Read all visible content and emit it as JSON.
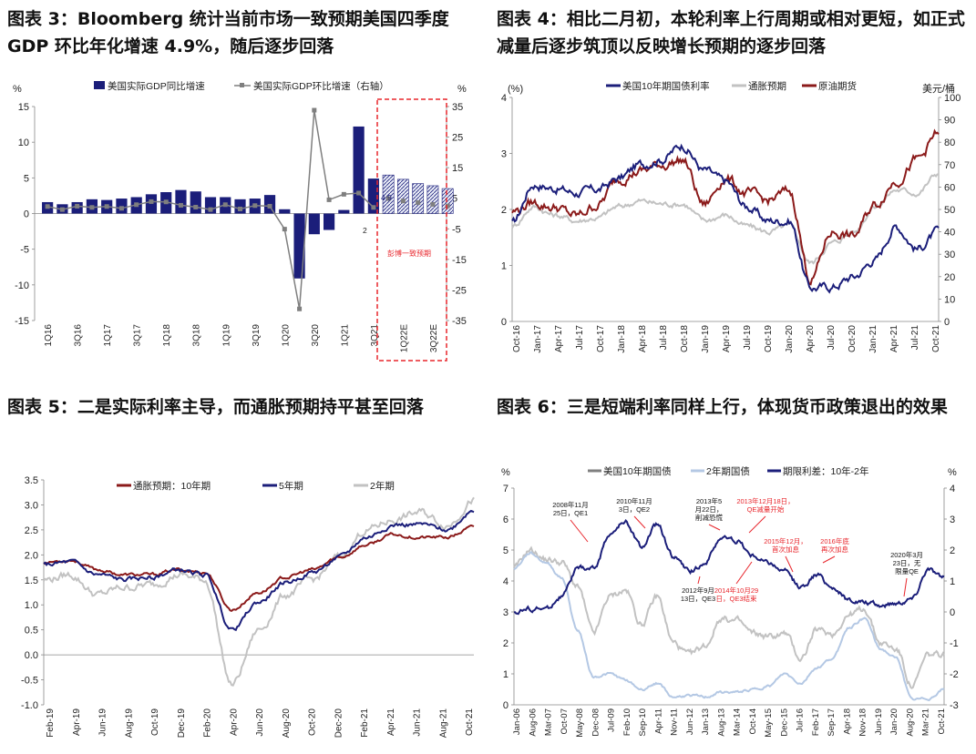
{
  "figures": [
    {
      "title": "图表 3：Bloomberg 统计当前市场一致预期美国四季度 GDP 环比年化增速 4.9%，随后逐步回落"
    },
    {
      "title": "图表 4：相比二月初，本轮利率上行周期或相对更短，如正式减量后逐步筑顶以反映增长预期的逐步回落"
    },
    {
      "title": "图表 5：二是实际利率主导，而通胀预期持平甚至回落"
    },
    {
      "title": "图表 6：三是短端利率同样上行，体现货币政策退出的效果"
    }
  ],
  "colors": {
    "navy": "#1b1e7a",
    "gray": "#7f7f7f",
    "lightgray": "#c2c2c2",
    "darkred": "#8b1a1a",
    "lightblue": "#b4c8e4",
    "red": "#e8262c"
  },
  "chart_data": [
    {
      "type": "bar",
      "title": "",
      "units_left": "%",
      "units_right": "%",
      "legend": [
        "美国实际GDP同比增速",
        "美国实际GDP环比增速（右轴）"
      ],
      "ylim": [
        -15,
        15
      ],
      "y2lim": [
        -35,
        35
      ],
      "yticks": [
        "15",
        "10",
        "5",
        "0",
        "-5",
        "-10",
        "-15"
      ],
      "y2ticks": [
        "35",
        "25",
        "15",
        "5",
        "-5",
        "-15",
        "-25",
        "-35"
      ],
      "xticklabels": [
        "1Q16",
        "3Q16",
        "1Q17",
        "3Q17",
        "1Q18",
        "3Q18",
        "1Q19",
        "3Q19",
        "1Q20",
        "3Q20",
        "1Q21",
        "3Q21",
        "1Q22E",
        "3Q22E"
      ],
      "categories": [
        "1Q16",
        "2Q16",
        "3Q16",
        "4Q16",
        "1Q17",
        "2Q17",
        "3Q17",
        "4Q17",
        "1Q18",
        "2Q18",
        "3Q18",
        "4Q18",
        "1Q19",
        "2Q19",
        "3Q19",
        "4Q19",
        "1Q20",
        "2Q20",
        "3Q20",
        "4Q20",
        "1Q21",
        "2Q21",
        "3Q21",
        "4Q21E",
        "1Q22E",
        "2Q22E",
        "3Q22E",
        "4Q22E"
      ],
      "series": [
        {
          "name": "美国实际GDP同比增速",
          "values": [
            1.6,
            1.3,
            1.6,
            2.0,
            1.9,
            2.1,
            2.3,
            2.7,
            3.0,
            3.3,
            3.1,
            2.3,
            2.3,
            2.0,
            2.1,
            2.6,
            0.6,
            -9.1,
            -2.9,
            -2.3,
            0.5,
            12.2,
            4.9,
            5.4,
            4.8,
            4.2,
            3.9,
            3.5
          ]
        },
        {
          "name": "美国实际GDP环比增速（右轴）",
          "values": [
            2.3,
            1.3,
            2.4,
            2.0,
            2.3,
            1.7,
            2.9,
            3.9,
            3.8,
            2.7,
            2.1,
            1.3,
            2.9,
            1.5,
            2.6,
            2.4,
            -5.1,
            -31.2,
            33.8,
            4.5,
            6.3,
            6.7,
            2.0,
            4.9,
            4.1,
            3.6,
            3.0,
            2.5
          ]
        }
      ],
      "annotations": [
        "4.9",
        "2",
        "彭博一致预期"
      ]
    },
    {
      "type": "line",
      "title": "",
      "units_left": "(%)",
      "units_right": "美元/桶",
      "legend": [
        "美国10年期国债利率",
        "通胀预期",
        "原油期货"
      ],
      "ylim": [
        0,
        4
      ],
      "y2lim": [
        0,
        100
      ],
      "yticks": [
        "4",
        "3",
        "2",
        "1",
        "0"
      ],
      "y2ticks": [
        "100",
        "90",
        "80",
        "70",
        "60",
        "50",
        "40",
        "30",
        "20",
        "10",
        "0"
      ],
      "xticklabels": [
        "Oct-16",
        "Jan-17",
        "Apr-17",
        "Jul-17",
        "Oct-17",
        "Jan-18",
        "Apr-18",
        "Jul-18",
        "Oct-18",
        "Jan-19",
        "Apr-19",
        "Jul-19",
        "Oct-19",
        "Jan-20",
        "Apr-20",
        "Jul-20",
        "Oct-20",
        "Jan-21",
        "Apr-21",
        "Jul-21",
        "Oct-21"
      ],
      "series": [
        {
          "name": "美国10年期国债利率",
          "values": [
            1.75,
            2.45,
            2.38,
            2.3,
            2.35,
            2.55,
            2.8,
            2.9,
            3.15,
            2.7,
            2.5,
            2.05,
            1.8,
            1.8,
            0.6,
            0.62,
            0.8,
            1.1,
            1.7,
            1.3,
            1.6
          ]
        },
        {
          "name": "通胀预期",
          "values": [
            1.7,
            2.05,
            1.9,
            1.8,
            1.85,
            2.05,
            2.15,
            2.1,
            2.1,
            1.8,
            1.9,
            1.7,
            1.6,
            1.7,
            1.05,
            1.4,
            1.6,
            2.05,
            2.35,
            2.3,
            2.65
          ]
        },
        {
          "name": "原油期货",
          "values": [
            49,
            53,
            51,
            47,
            52,
            64,
            67,
            70,
            72,
            52,
            64,
            57,
            54,
            58,
            19,
            40,
            38,
            52,
            63,
            72,
            84
          ]
        }
      ]
    },
    {
      "type": "line",
      "title": "",
      "legend": [
        "通胀预期：10年期",
        "5年期",
        "2年期"
      ],
      "ylim": [
        -1.0,
        3.5
      ],
      "yticks": [
        "3.5",
        "3.0",
        "2.5",
        "2.0",
        "1.5",
        "1.0",
        "0.5",
        "0.0",
        "-0.5",
        "-1.0"
      ],
      "xticklabels": [
        "Feb-19",
        "Apr-19",
        "Jun-19",
        "Aug-19",
        "Oct-19",
        "Dec-19",
        "Feb-20",
        "Apr-20",
        "Jun-20",
        "Aug-20",
        "Oct-20",
        "Dec-20",
        "Feb-21",
        "Apr-21",
        "Jun-21",
        "Aug-21",
        "Oct-21"
      ],
      "series": [
        {
          "name": "通胀预期：10年期",
          "values": [
            1.85,
            1.9,
            1.7,
            1.6,
            1.6,
            1.7,
            1.65,
            0.9,
            1.25,
            1.55,
            1.7,
            1.95,
            2.2,
            2.4,
            2.35,
            2.35,
            2.55
          ]
        },
        {
          "name": "5年期",
          "values": [
            1.8,
            1.85,
            1.6,
            1.5,
            1.55,
            1.7,
            1.6,
            0.5,
            1.05,
            1.45,
            1.65,
            1.95,
            2.35,
            2.6,
            2.6,
            2.5,
            2.9
          ]
        },
        {
          "name": "2年期",
          "values": [
            1.5,
            1.6,
            1.2,
            1.35,
            1.4,
            1.6,
            1.5,
            -0.6,
            0.5,
            1.2,
            1.5,
            1.95,
            2.5,
            2.7,
            2.85,
            2.6,
            3.1
          ]
        }
      ]
    },
    {
      "type": "line",
      "title": "",
      "units_left": "%",
      "units_right": "%",
      "legend": [
        "美国10年期国债",
        "2年期国债",
        "期限利差：10年-2年"
      ],
      "ylim": [
        0,
        7
      ],
      "y2lim": [
        -3,
        4
      ],
      "yticks": [
        "7",
        "6",
        "5",
        "4",
        "3",
        "2",
        "1",
        "0"
      ],
      "y2ticks": [
        "4",
        "3",
        "2",
        "1",
        "0",
        "-1",
        "-2",
        "-3"
      ],
      "xticklabels": [
        "Jan-06",
        "Aug-06",
        "Mar-07",
        "Oct-07",
        "May-08",
        "Dec-08",
        "Jul-09",
        "Feb-10",
        "Sep-10",
        "Apr-11",
        "Nov-11",
        "Jun-12",
        "Jan-13",
        "Aug-13",
        "Mar-14",
        "Oct-14",
        "May-15",
        "Dec-15",
        "Jul-16",
        "Feb-17",
        "Sep-17",
        "Apr-18",
        "Nov-18",
        "Jun-19",
        "Jan-20",
        "Aug-20",
        "Mar-21",
        "Oct-21"
      ],
      "series": [
        {
          "name": "美国10年期国债",
          "values": [
            4.4,
            5.0,
            4.7,
            4.6,
            3.8,
            2.3,
            3.5,
            3.7,
            2.6,
            3.5,
            2.0,
            1.6,
            1.9,
            2.8,
            2.7,
            2.3,
            2.2,
            2.3,
            1.5,
            2.4,
            2.3,
            2.9,
            3.1,
            2.0,
            1.8,
            0.6,
            1.6,
            1.6
          ]
        },
        {
          "name": "2年期国债",
          "values": [
            4.4,
            4.9,
            4.6,
            4.1,
            2.4,
            0.9,
            1.0,
            0.8,
            0.5,
            0.7,
            0.25,
            0.3,
            0.25,
            0.4,
            0.4,
            0.5,
            0.6,
            1.0,
            0.7,
            1.2,
            1.5,
            2.5,
            2.8,
            1.8,
            1.5,
            0.15,
            0.2,
            0.5
          ]
        },
        {
          "name": "期限利差：10年-2年",
          "values": [
            0.0,
            0.1,
            0.1,
            0.5,
            1.4,
            1.4,
            2.5,
            2.9,
            2.1,
            2.8,
            1.8,
            1.3,
            1.6,
            2.4,
            2.3,
            1.8,
            1.6,
            1.3,
            0.8,
            1.2,
            0.8,
            0.4,
            0.3,
            0.2,
            0.3,
            0.45,
            1.4,
            1.1
          ]
        }
      ],
      "annotations": [
        "2008年11月 25日，QE1",
        "2010年11月 3日，QE2",
        "2012年9月 13日，QE3",
        "2013年5 月22日， 削减恐慌",
        "2013年12月18日， QE减量开始",
        "2014年10月29 日，QE3结束",
        "2015年12月， 首次加息",
        "2016年底 再次加息",
        "2020年3月 23日，无 限量QE"
      ]
    }
  ]
}
